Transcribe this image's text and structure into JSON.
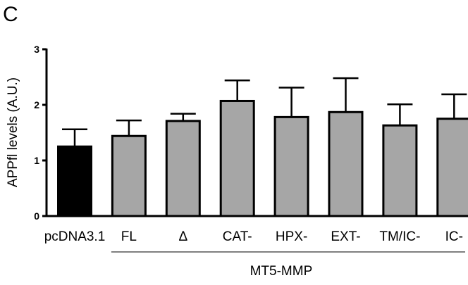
{
  "panel_label": "C",
  "chart_data": {
    "type": "bar",
    "title": "",
    "xlabel": "",
    "ylabel": "APPfl levels (A.U.)",
    "ylim": [
      0,
      3
    ],
    "yticks": [
      "0",
      "1",
      "2",
      "3"
    ],
    "categories": [
      "pcDNA3.1",
      "FL",
      "Δ",
      "CAT-",
      "HPX-",
      "EXT-",
      "TM/IC-",
      "IC-"
    ],
    "values": [
      1.25,
      1.44,
      1.71,
      2.07,
      1.78,
      1.87,
      1.63,
      1.75
    ],
    "errors": [
      0.31,
      0.28,
      0.13,
      0.37,
      0.53,
      0.61,
      0.38,
      0.44
    ],
    "colors": [
      "#000000",
      "#a6a6a6",
      "#a6a6a6",
      "#a6a6a6",
      "#a6a6a6",
      "#a6a6a6",
      "#a6a6a6",
      "#a6a6a6"
    ],
    "group_label": "MT5-MMP",
    "group_range": [
      "FL",
      "IC-"
    ],
    "grid": false,
    "legend": "none"
  }
}
